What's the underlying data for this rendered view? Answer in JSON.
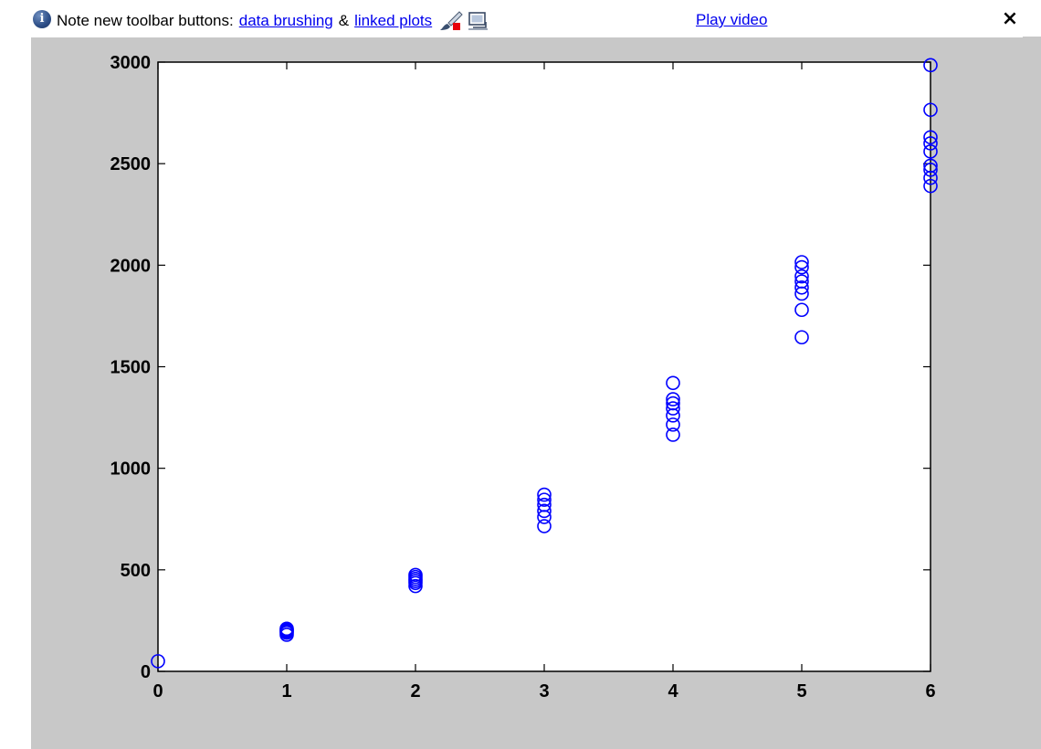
{
  "notice": {
    "text": "Note new toolbar buttons:",
    "link_brushing": "data brushing",
    "ampersand": "&",
    "link_linked_plots": "linked plots",
    "play_video": "Play video",
    "close_glyph": "×",
    "icons": [
      "info-icon",
      "brush-icon",
      "linked-plots-icon",
      "close-icon"
    ]
  },
  "colors": {
    "marker": "#0000ff",
    "figure_background": "#c8c8c8",
    "axes_background": "#ffffff",
    "link": "#0000ee"
  },
  "chart_data": {
    "type": "scatter",
    "marker": "circle-open",
    "xlim": [
      0,
      6
    ],
    "ylim": [
      0,
      3000
    ],
    "xticks": [
      0,
      1,
      2,
      3,
      4,
      5,
      6
    ],
    "yticks": [
      0,
      500,
      1000,
      1500,
      2000,
      2500,
      3000
    ],
    "grid": false,
    "title": "",
    "xlabel": "",
    "ylabel": "",
    "series": [
      {
        "points": [
          [
            0,
            50
          ],
          [
            1,
            180
          ],
          [
            1,
            190
          ],
          [
            1,
            200
          ],
          [
            1,
            205
          ],
          [
            1,
            210
          ],
          [
            1,
            195
          ],
          [
            2,
            420
          ],
          [
            2,
            435
          ],
          [
            2,
            445
          ],
          [
            2,
            455
          ],
          [
            2,
            465
          ],
          [
            2,
            475
          ],
          [
            3,
            715
          ],
          [
            3,
            760
          ],
          [
            3,
            790
          ],
          [
            3,
            820
          ],
          [
            3,
            845
          ],
          [
            3,
            870
          ],
          [
            4,
            1165
          ],
          [
            4,
            1215
          ],
          [
            4,
            1260
          ],
          [
            4,
            1295
          ],
          [
            4,
            1320
          ],
          [
            4,
            1340
          ],
          [
            4,
            1420
          ],
          [
            5,
            1645
          ],
          [
            5,
            1780
          ],
          [
            5,
            1860
          ],
          [
            5,
            1890
          ],
          [
            5,
            1920
          ],
          [
            5,
            1945
          ],
          [
            5,
            1990
          ],
          [
            5,
            2015
          ],
          [
            6,
            2390
          ],
          [
            6,
            2430
          ],
          [
            6,
            2470
          ],
          [
            6,
            2490
          ],
          [
            6,
            2560
          ],
          [
            6,
            2600
          ],
          [
            6,
            2630
          ],
          [
            6,
            2765
          ],
          [
            6,
            2985
          ]
        ]
      }
    ]
  }
}
